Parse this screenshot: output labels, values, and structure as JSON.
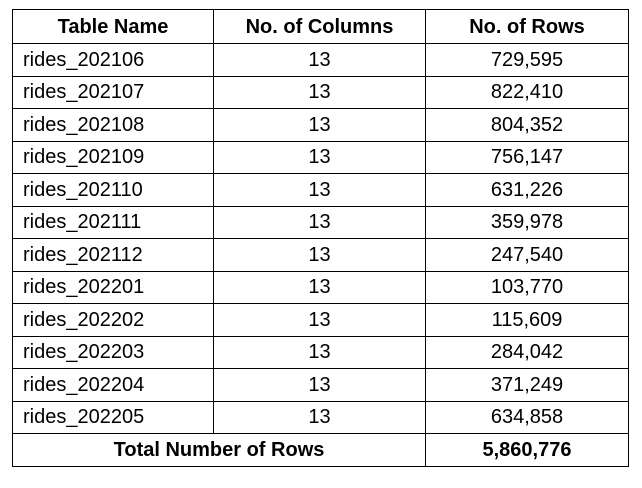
{
  "table": {
    "headers": {
      "name": "Table Name",
      "columns": "No. of Columns",
      "rows": "No. of Rows"
    },
    "rows": [
      {
        "name": "rides_202106",
        "columns": "13",
        "rows": "729,595"
      },
      {
        "name": "rides_202107",
        "columns": "13",
        "rows": "822,410"
      },
      {
        "name": "rides_202108",
        "columns": "13",
        "rows": "804,352"
      },
      {
        "name": "rides_202109",
        "columns": "13",
        "rows": "756,147"
      },
      {
        "name": "rides_202110",
        "columns": "13",
        "rows": "631,226"
      },
      {
        "name": "rides_202111",
        "columns": "13",
        "rows": "359,978"
      },
      {
        "name": "rides_202112",
        "columns": "13",
        "rows": "247,540"
      },
      {
        "name": "rides_202201",
        "columns": "13",
        "rows": "103,770"
      },
      {
        "name": "rides_202202",
        "columns": "13",
        "rows": "115,609"
      },
      {
        "name": "rides_202203",
        "columns": "13",
        "rows": "284,042"
      },
      {
        "name": "rides_202204",
        "columns": "13",
        "rows": "371,249"
      },
      {
        "name": "rides_202205",
        "columns": "13",
        "rows": "634,858"
      }
    ],
    "total": {
      "label": "Total Number of Rows",
      "value": "5,860,776"
    }
  }
}
